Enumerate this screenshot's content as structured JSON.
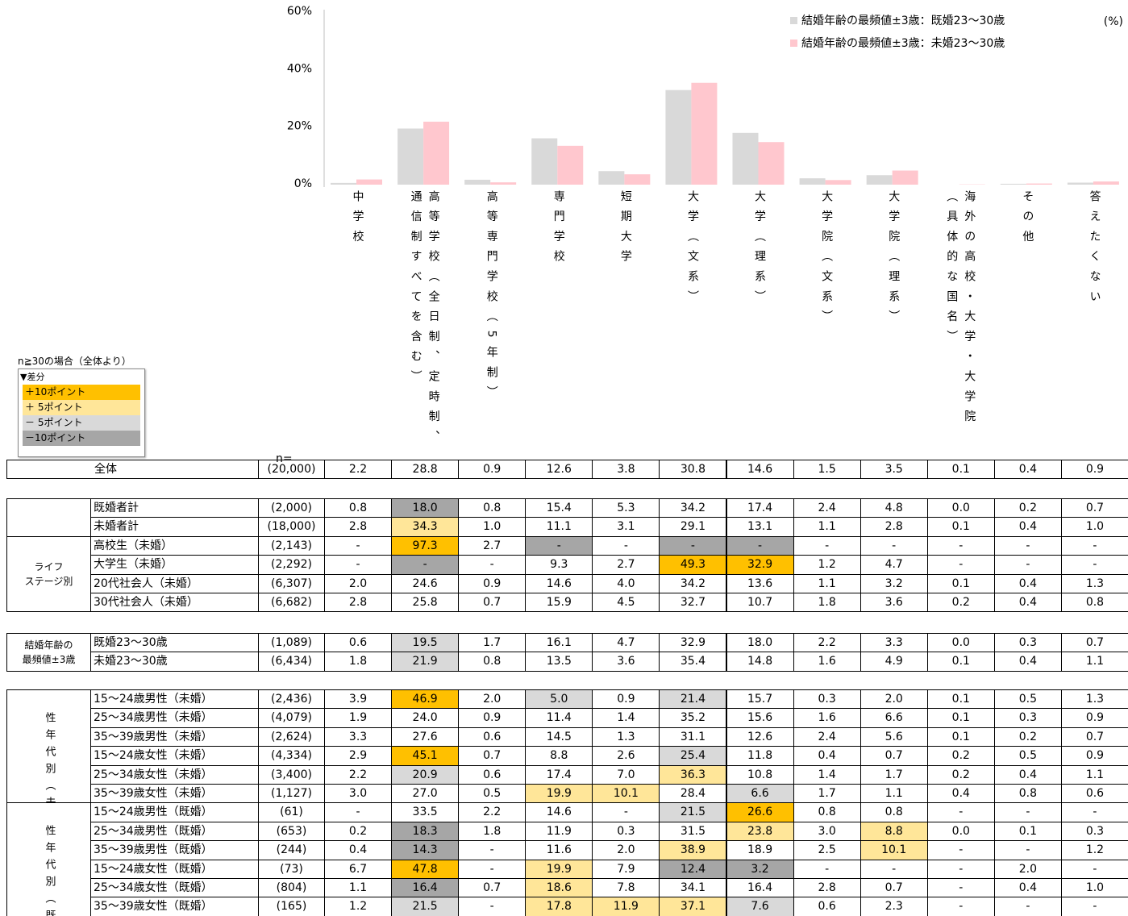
{
  "chart_data": {
    "type": "bar",
    "unit_label": "(%)",
    "categories": [
      "中学校",
      "高等学校（全日制、定時制、通信制すべてを含む）",
      "高等専門学校（5年制）",
      "専門学校",
      "短期大学",
      "大学（文系）",
      "大学（理系）",
      "大学院（文系）",
      "大学院（理系）",
      "海外の高校・大学・大学院（具体的な国名）",
      "その他",
      "答えたくない"
    ],
    "series": [
      {
        "name": "結婚年齢の最頻値±3歳：既婚23〜30歳",
        "color": "#d9d9d9",
        "values": [
          0.6,
          19.5,
          1.7,
          16.1,
          4.7,
          32.9,
          18.0,
          2.2,
          3.3,
          0.0,
          0.3,
          0.7
        ]
      },
      {
        "name": "結婚年齢の最頻値±3歳：未婚23〜30歳",
        "color": "#ffc7ce",
        "values": [
          1.8,
          21.9,
          0.8,
          13.5,
          3.6,
          35.4,
          14.8,
          1.6,
          4.9,
          0.1,
          0.4,
          1.1
        ]
      }
    ],
    "ylim": [
      0,
      60
    ],
    "yticks": [
      {
        "value": 0,
        "label": "0%"
      },
      {
        "value": 20,
        "label": "20%"
      },
      {
        "value": 40,
        "label": "40%"
      },
      {
        "value": 60,
        "label": "60%"
      }
    ],
    "legend": "top-right"
  },
  "legend_box": {
    "title": "n≧30の場合（全体より）",
    "heading": "▼差分",
    "items": [
      {
        "label": "＋10ポイント",
        "color": "#ffc000"
      },
      {
        "label": "＋ 5ポイント",
        "color": "#ffe699"
      },
      {
        "label": "－ 5ポイント",
        "color": "#d9d9d9"
      },
      {
        "label": "－10ポイント",
        "color": "#a6a6a6"
      }
    ]
  },
  "table": {
    "n_header": "n=",
    "sections": [
      {
        "groups": [
          {
            "rows": [
              {
                "label": "全体",
                "n": "(20,000)",
                "values": [
                  "2.2",
                  "28.8",
                  "0.9",
                  "12.6",
                  "3.8",
                  "30.8",
                  "14.6",
                  "1.5",
                  "3.5",
                  "0.1",
                  "0.4",
                  "0.9"
                ]
              }
            ]
          }
        ]
      },
      {
        "groups": [
          {
            "rows": [
              {
                "label": "既婚者計",
                "n": "(2,000)",
                "values": [
                  "0.8",
                  "18.0",
                  "0.8",
                  "15.4",
                  "5.3",
                  "34.2",
                  "17.4",
                  "2.4",
                  "4.8",
                  "0.0",
                  "0.2",
                  "0.7"
                ],
                "fills": [
                  null,
                  "#a6a6a6",
                  null,
                  null,
                  null,
                  null,
                  null,
                  null,
                  null,
                  null,
                  null,
                  null
                ]
              },
              {
                "label": "未婚者計",
                "n": "(18,000)",
                "values": [
                  "2.8",
                  "34.3",
                  "1.0",
                  "11.1",
                  "3.1",
                  "29.1",
                  "13.1",
                  "1.1",
                  "2.8",
                  "0.1",
                  "0.4",
                  "1.0"
                ],
                "fills": [
                  null,
                  "#ffe699",
                  null,
                  null,
                  null,
                  null,
                  null,
                  null,
                  null,
                  null,
                  null,
                  null
                ]
              }
            ]
          },
          {
            "label": [
              "ライフ",
              "ステージ別"
            ],
            "rows": [
              {
                "label": "高校生（未婚）",
                "n": "(2,143)",
                "values": [
                  "-",
                  "97.3",
                  "2.7",
                  "-",
                  "-",
                  "-",
                  "-",
                  "-",
                  "-",
                  "-",
                  "-",
                  "-"
                ],
                "fills": [
                  null,
                  "#ffc000",
                  null,
                  "#a6a6a6",
                  null,
                  "#a6a6a6",
                  "#a6a6a6",
                  null,
                  null,
                  null,
                  null,
                  null
                ]
              },
              {
                "label": "大学生（未婚）",
                "n": "(2,292)",
                "values": [
                  "-",
                  "-",
                  "-",
                  "9.3",
                  "2.7",
                  "49.3",
                  "32.9",
                  "1.2",
                  "4.7",
                  "-",
                  "-",
                  "-"
                ],
                "fills": [
                  null,
                  "#a6a6a6",
                  null,
                  null,
                  null,
                  "#ffc000",
                  "#ffc000",
                  null,
                  null,
                  null,
                  null,
                  null
                ]
              },
              {
                "label": "20代社会人（未婚）",
                "n": "(6,307)",
                "values": [
                  "2.0",
                  "24.6",
                  "0.9",
                  "14.6",
                  "4.0",
                  "34.2",
                  "13.6",
                  "1.1",
                  "3.2",
                  "0.1",
                  "0.4",
                  "1.3"
                ]
              },
              {
                "label": "30代社会人（未婚）",
                "n": "(6,682)",
                "values": [
                  "2.8",
                  "25.8",
                  "0.7",
                  "15.9",
                  "4.5",
                  "32.7",
                  "10.7",
                  "1.8",
                  "3.6",
                  "0.2",
                  "0.4",
                  "0.8"
                ]
              }
            ]
          }
        ]
      },
      {
        "groups": [
          {
            "label": [
              "結婚年齢の",
              "最頻値±3歳"
            ],
            "rows": [
              {
                "label": "既婚23〜30歳",
                "n": "(1,089)",
                "values": [
                  "0.6",
                  "19.5",
                  "1.7",
                  "16.1",
                  "4.7",
                  "32.9",
                  "18.0",
                  "2.2",
                  "3.3",
                  "0.0",
                  "0.3",
                  "0.7"
                ],
                "fills": [
                  null,
                  "#d9d9d9",
                  null,
                  null,
                  null,
                  null,
                  null,
                  null,
                  null,
                  null,
                  null,
                  null
                ]
              },
              {
                "label": "未婚23〜30歳",
                "n": "(6,434)",
                "values": [
                  "1.8",
                  "21.9",
                  "0.8",
                  "13.5",
                  "3.6",
                  "35.4",
                  "14.8",
                  "1.6",
                  "4.9",
                  "0.1",
                  "0.4",
                  "1.1"
                ],
                "fills": [
                  null,
                  "#d9d9d9",
                  null,
                  null,
                  null,
                  null,
                  null,
                  null,
                  null,
                  null,
                  null,
                  null
                ]
              }
            ]
          }
        ]
      },
      {
        "groups": [
          {
            "label": "性年代別（未婚）",
            "rows": [
              {
                "label": "15〜24歳男性（未婚）",
                "n": "(2,436)",
                "values": [
                  "3.9",
                  "46.9",
                  "2.0",
                  "5.0",
                  "0.9",
                  "21.4",
                  "15.7",
                  "0.3",
                  "2.0",
                  "0.1",
                  "0.5",
                  "1.3"
                ],
                "fills": [
                  null,
                  "#ffc000",
                  null,
                  "#d9d9d9",
                  null,
                  "#d9d9d9",
                  null,
                  null,
                  null,
                  null,
                  null,
                  null
                ]
              },
              {
                "label": "25〜34歳男性（未婚）",
                "n": "(4,079)",
                "values": [
                  "1.9",
                  "24.0",
                  "0.9",
                  "11.4",
                  "1.4",
                  "35.2",
                  "15.6",
                  "1.6",
                  "6.6",
                  "0.1",
                  "0.3",
                  "0.9"
                ]
              },
              {
                "label": "35〜39歳男性（未婚）",
                "n": "(2,624)",
                "values": [
                  "3.3",
                  "27.6",
                  "0.6",
                  "14.5",
                  "1.3",
                  "31.1",
                  "12.6",
                  "2.4",
                  "5.6",
                  "0.1",
                  "0.2",
                  "0.7"
                ]
              },
              {
                "label": "15〜24歳女性（未婚）",
                "n": "(4,334)",
                "values": [
                  "2.9",
                  "45.1",
                  "0.7",
                  "8.8",
                  "2.6",
                  "25.4",
                  "11.8",
                  "0.4",
                  "0.7",
                  "0.2",
                  "0.5",
                  "0.9"
                ],
                "fills": [
                  null,
                  "#ffc000",
                  null,
                  null,
                  null,
                  "#d9d9d9",
                  null,
                  null,
                  null,
                  null,
                  null,
                  null
                ]
              },
              {
                "label": "25〜34歳女性（未婚）",
                "n": "(3,400)",
                "values": [
                  "2.2",
                  "20.9",
                  "0.6",
                  "17.4",
                  "7.0",
                  "36.3",
                  "10.8",
                  "1.4",
                  "1.7",
                  "0.2",
                  "0.4",
                  "1.1"
                ],
                "fills": [
                  null,
                  "#d9d9d9",
                  null,
                  null,
                  null,
                  "#ffe699",
                  null,
                  null,
                  null,
                  null,
                  null,
                  null
                ]
              },
              {
                "label": "35〜39歳女性（未婚）",
                "n": "(1,127)",
                "values": [
                  "3.0",
                  "27.0",
                  "0.5",
                  "19.9",
                  "10.1",
                  "28.4",
                  "6.6",
                  "1.7",
                  "1.1",
                  "0.4",
                  "0.8",
                  "0.6"
                ],
                "fills": [
                  null,
                  null,
                  null,
                  "#ffe699",
                  "#ffe699",
                  null,
                  "#d9d9d9",
                  null,
                  null,
                  null,
                  null,
                  null
                ]
              }
            ]
          },
          {
            "label": "性年代別（既婚）",
            "rows": [
              {
                "label": "15〜24歳男性（既婚）",
                "n": "(61)",
                "values": [
                  "-",
                  "33.5",
                  "2.2",
                  "14.6",
                  "-",
                  "21.5",
                  "26.6",
                  "0.8",
                  "0.8",
                  "-",
                  "-",
                  "-"
                ],
                "fills": [
                  null,
                  null,
                  null,
                  null,
                  null,
                  "#d9d9d9",
                  "#ffc000",
                  null,
                  null,
                  null,
                  null,
                  null
                ]
              },
              {
                "label": "25〜34歳男性（既婚）",
                "n": "(653)",
                "values": [
                  "0.2",
                  "18.3",
                  "1.8",
                  "11.9",
                  "0.3",
                  "31.5",
                  "23.8",
                  "3.0",
                  "8.8",
                  "0.0",
                  "0.1",
                  "0.3"
                ],
                "fills": [
                  null,
                  "#a6a6a6",
                  null,
                  null,
                  null,
                  null,
                  "#ffe699",
                  null,
                  "#ffe699",
                  null,
                  null,
                  null
                ]
              },
              {
                "label": "35〜39歳男性（既婚）",
                "n": "(244)",
                "values": [
                  "0.4",
                  "14.3",
                  "-",
                  "11.6",
                  "2.0",
                  "38.9",
                  "18.9",
                  "2.5",
                  "10.1",
                  "-",
                  "-",
                  "1.2"
                ],
                "fills": [
                  null,
                  "#a6a6a6",
                  null,
                  null,
                  null,
                  "#ffe699",
                  null,
                  null,
                  "#ffe699",
                  null,
                  null,
                  null
                ]
              },
              {
                "label": "15〜24歳女性（既婚）",
                "n": "(73)",
                "values": [
                  "6.7",
                  "47.8",
                  "-",
                  "19.9",
                  "7.9",
                  "12.4",
                  "3.2",
                  "-",
                  "-",
                  "-",
                  "2.0",
                  "-"
                ],
                "fills": [
                  null,
                  "#ffc000",
                  null,
                  "#ffe699",
                  null,
                  "#a6a6a6",
                  "#a6a6a6",
                  null,
                  null,
                  null,
                  null,
                  null
                ]
              },
              {
                "label": "25〜34歳女性（既婚）",
                "n": "(804)",
                "values": [
                  "1.1",
                  "16.4",
                  "0.7",
                  "18.6",
                  "7.8",
                  "34.1",
                  "16.4",
                  "2.8",
                  "0.7",
                  "-",
                  "0.4",
                  "1.0"
                ],
                "fills": [
                  null,
                  "#a6a6a6",
                  null,
                  "#ffe699",
                  null,
                  null,
                  null,
                  null,
                  null,
                  null,
                  null,
                  null
                ]
              },
              {
                "label": "35〜39歳女性（既婚）",
                "n": "(165)",
                "values": [
                  "1.2",
                  "21.5",
                  "-",
                  "17.8",
                  "11.9",
                  "37.1",
                  "7.6",
                  "0.6",
                  "2.3",
                  "-",
                  "-",
                  "-"
                ],
                "fills": [
                  null,
                  "#d9d9d9",
                  null,
                  "#ffe699",
                  "#ffe699",
                  "#ffe699",
                  "#d9d9d9",
                  null,
                  null,
                  null,
                  null,
                  null
                ]
              }
            ]
          }
        ]
      }
    ]
  }
}
